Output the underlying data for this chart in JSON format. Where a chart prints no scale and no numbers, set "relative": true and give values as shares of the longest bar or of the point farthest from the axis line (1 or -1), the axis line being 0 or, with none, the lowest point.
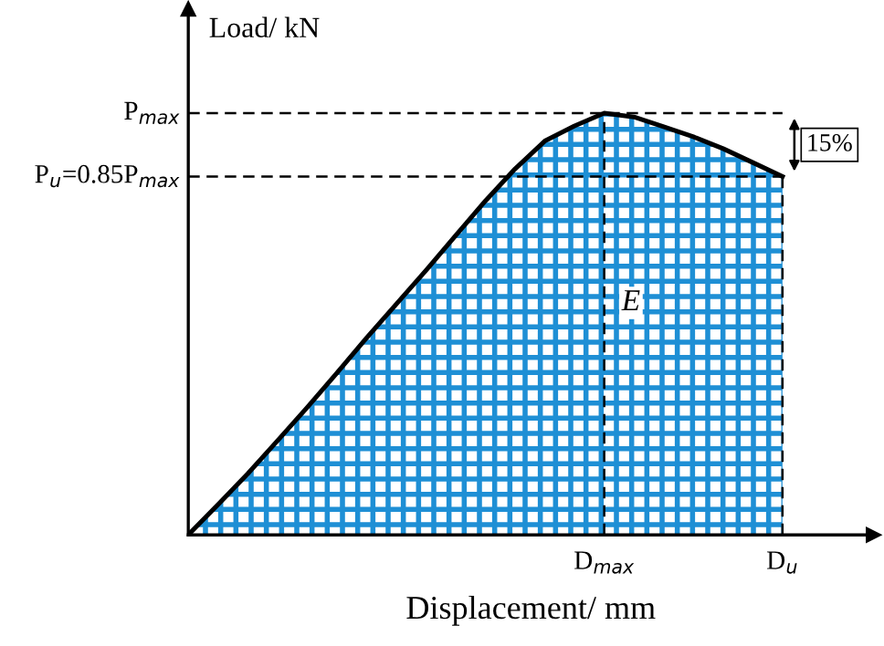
{
  "chart_data": {
    "type": "area",
    "relative": true,
    "xlabel": "Displacement/ mm",
    "ylabel": "Load/ kN",
    "categories": [
      null,
      null,
      null,
      null,
      null,
      null,
      null,
      null,
      null,
      null,
      null,
      null,
      null,
      null,
      null,
      null,
      null,
      null,
      null,
      null,
      null
    ],
    "series": [
      {
        "color": "#1e8fd5",
        "values": [
          0,
          0.072,
          0.145,
          0.223,
          0.302,
          0.384,
          0.467,
          0.547,
          0.627,
          0.71,
          0.792,
          0.868,
          0.934,
          0.97,
          1,
          0.991,
          0.968,
          0.944,
          0.916,
          0.883,
          0.85
        ]
      }
    ],
    "annotations": [
      "P$_{max}$",
      "P$_{u}$=0.85P$_{max}$",
      "D$_{max}$",
      "D$_{u}$",
      "E",
      "15%"
    ]
  }
}
